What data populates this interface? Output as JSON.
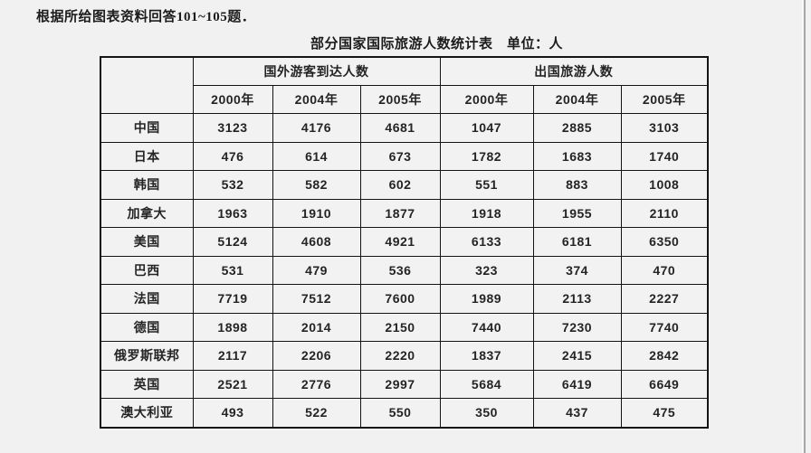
{
  "page": {
    "instruction": "根据所给图表资料回答101~105题．",
    "title": "部分国家国际旅游人数统计表　单位：人"
  },
  "table": {
    "corner_label": "",
    "group_headers": [
      "国外游客到达人数",
      "出国旅游人数"
    ],
    "year_headers": [
      "2000年",
      "2004年",
      "2005年",
      "2000年",
      "2004年",
      "2005年"
    ],
    "rows": [
      {
        "country": "中国",
        "values": [
          "3123",
          "4176",
          "4681",
          "1047",
          "2885",
          "3103"
        ]
      },
      {
        "country": "日本",
        "values": [
          "476",
          "614",
          "673",
          "1782",
          "1683",
          "1740"
        ]
      },
      {
        "country": "韩国",
        "values": [
          "532",
          "582",
          "602",
          "551",
          "883",
          "1008"
        ]
      },
      {
        "country": "加拿大",
        "values": [
          "1963",
          "1910",
          "1877",
          "1918",
          "1955",
          "2110"
        ]
      },
      {
        "country": "美国",
        "values": [
          "5124",
          "4608",
          "4921",
          "6133",
          "6181",
          "6350"
        ]
      },
      {
        "country": "巴西",
        "values": [
          "531",
          "479",
          "536",
          "323",
          "374",
          "470"
        ]
      },
      {
        "country": "法国",
        "values": [
          "7719",
          "7512",
          "7600",
          "1989",
          "2113",
          "2227"
        ]
      },
      {
        "country": "德国",
        "values": [
          "1898",
          "2014",
          "2150",
          "7440",
          "7230",
          "7740"
        ]
      },
      {
        "country": "俄罗斯联邦",
        "values": [
          "2117",
          "2206",
          "2220",
          "1837",
          "2415",
          "2842"
        ]
      },
      {
        "country": "英国",
        "values": [
          "2521",
          "2776",
          "2997",
          "5684",
          "6419",
          "6649"
        ]
      },
      {
        "country": "澳大利亚",
        "values": [
          "493",
          "522",
          "550",
          "350",
          "437",
          "475"
        ]
      }
    ]
  },
  "colors": {
    "page_background": "#f1f1f1",
    "table_border": "#141414",
    "text": "#1f1f1f",
    "right_edge_line": "#a8a8a8"
  },
  "chart_data": {
    "type": "table",
    "title": "部分国家国际旅游人数统计表",
    "unit": "人",
    "categories": [
      "中国",
      "日本",
      "韩国",
      "加拿大",
      "美国",
      "巴西",
      "法国",
      "德国",
      "俄罗斯联邦",
      "英国",
      "澳大利亚"
    ],
    "series": [
      {
        "group": "国外游客到达人数",
        "name": "2000年",
        "values": [
          3123,
          476,
          532,
          1963,
          5124,
          531,
          7719,
          1898,
          2117,
          2521,
          493
        ]
      },
      {
        "group": "国外游客到达人数",
        "name": "2004年",
        "values": [
          4176,
          614,
          582,
          1910,
          4608,
          479,
          7512,
          2014,
          2206,
          2776,
          522
        ]
      },
      {
        "group": "国外游客到达人数",
        "name": "2005年",
        "values": [
          4681,
          673,
          602,
          1877,
          4921,
          536,
          7600,
          2150,
          2220,
          2997,
          550
        ]
      },
      {
        "group": "出国旅游人数",
        "name": "2000年",
        "values": [
          1047,
          1782,
          551,
          1918,
          6133,
          323,
          1989,
          7440,
          1837,
          5684,
          350
        ]
      },
      {
        "group": "出国旅游人数",
        "name": "2004年",
        "values": [
          2885,
          1683,
          883,
          1955,
          6181,
          374,
          2113,
          7230,
          2415,
          6419,
          437
        ]
      },
      {
        "group": "出国旅游人数",
        "name": "2005年",
        "values": [
          3103,
          1740,
          1008,
          2110,
          6350,
          470,
          2227,
          7740,
          2842,
          6649,
          475
        ]
      }
    ]
  }
}
